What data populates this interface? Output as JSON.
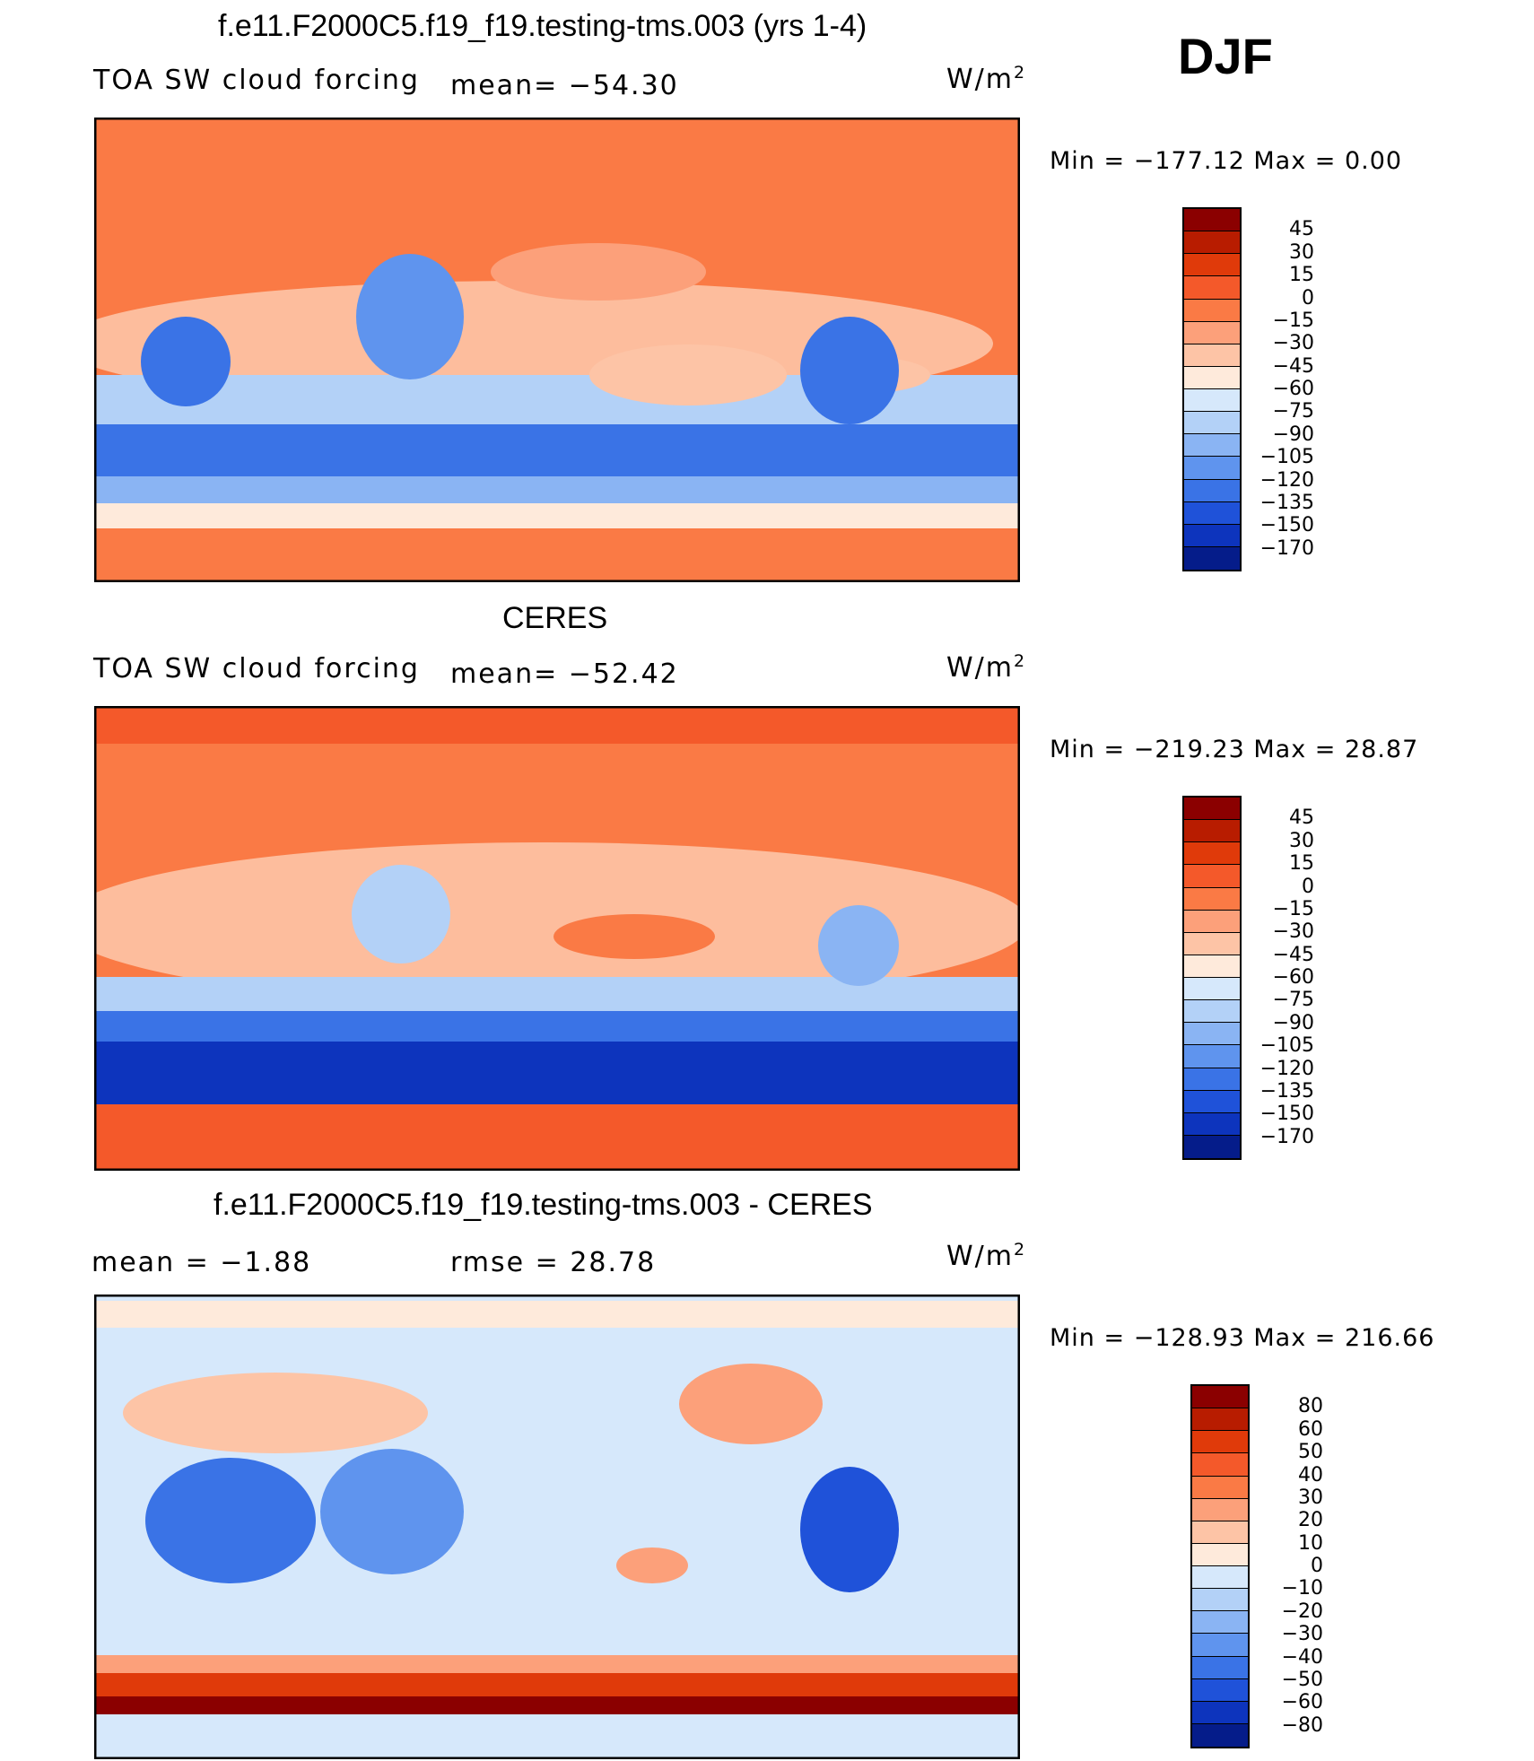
{
  "season": "DJF",
  "panels": [
    {
      "title": "f.e11.F2000C5.f19_f19.testing-tms.003 (yrs 1-4)",
      "left_label": "TOA SW cloud forcing",
      "center_label": "mean=  −54.30",
      "units_base": "W/m",
      "units_sup": "2",
      "minmax": "Min  =  −177.12  Max  =     0.00",
      "colorbar_labels": [
        "45",
        "30",
        "15",
        "0",
        "−15",
        "−30",
        "−45",
        "−60",
        "−75",
        "−90",
        "−105",
        "−120",
        "−135",
        "−150",
        "−170"
      ],
      "colors": [
        "#8b0000",
        "#b81c00",
        "#e03a0a",
        "#f4592a",
        "#fa7a45",
        "#fca07a",
        "#fdc4a6",
        "#feeadb",
        "#d6e8fb",
        "#b3d1f7",
        "#8ab4f3",
        "#5f94ee",
        "#3a73e6",
        "#1f52d9",
        "#0d34bd",
        "#051c8a"
      ]
    },
    {
      "title": "CERES",
      "left_label": "TOA SW cloud forcing",
      "center_label": "mean=  −52.42",
      "units_base": "W/m",
      "units_sup": "2",
      "minmax": "Min  =  −219.23  Max  =    28.87",
      "colorbar_labels": [
        "45",
        "30",
        "15",
        "0",
        "−15",
        "−30",
        "−45",
        "−60",
        "−75",
        "−90",
        "−105",
        "−120",
        "−135",
        "−150",
        "−170"
      ],
      "colors": [
        "#8b0000",
        "#b81c00",
        "#e03a0a",
        "#f4592a",
        "#fa7a45",
        "#fca07a",
        "#fdc4a6",
        "#feeadb",
        "#d6e8fb",
        "#b3d1f7",
        "#8ab4f3",
        "#5f94ee",
        "#3a73e6",
        "#1f52d9",
        "#0d34bd",
        "#051c8a"
      ]
    },
    {
      "title": "f.e11.F2000C5.f19_f19.testing-tms.003 - CERES",
      "left_label": "mean  =    −1.88",
      "center_label": "rmse  =    28.78",
      "units_base": "W/m",
      "units_sup": "2",
      "minmax": "Min  =  −128.93  Max  =  216.66",
      "colorbar_labels": [
        "80",
        "60",
        "50",
        "40",
        "30",
        "20",
        "10",
        "0",
        "−10",
        "−20",
        "−30",
        "−40",
        "−50",
        "−60",
        "−80"
      ],
      "colors": [
        "#8b0000",
        "#b81c00",
        "#e03a0a",
        "#f4592a",
        "#fa7a45",
        "#fca07a",
        "#fdc4a6",
        "#feeadb",
        "#d6e8fb",
        "#b3d1f7",
        "#8ab4f3",
        "#5f94ee",
        "#3a73e6",
        "#1f52d9",
        "#0d34bd",
        "#051c8a"
      ]
    }
  ],
  "chart_data": [
    {
      "type": "heatmap",
      "title": "f.e11.F2000C5.f19_f19.testing-tms.003 (yrs 1-4)",
      "variable": "TOA SW cloud forcing",
      "units": "W/m2",
      "mean": -54.3,
      "min": -177.12,
      "max": 0.0,
      "contour_levels": [
        45,
        30,
        15,
        0,
        -15,
        -30,
        -45,
        -60,
        -75,
        -90,
        -105,
        -120,
        -135,
        -150,
        -170
      ]
    },
    {
      "type": "heatmap",
      "title": "CERES",
      "variable": "TOA SW cloud forcing",
      "units": "W/m2",
      "mean": -52.42,
      "min": -219.23,
      "max": 28.87,
      "contour_levels": [
        45,
        30,
        15,
        0,
        -15,
        -30,
        -45,
        -60,
        -75,
        -90,
        -105,
        -120,
        -135,
        -150,
        -170
      ]
    },
    {
      "type": "heatmap",
      "title": "f.e11.F2000C5.f19_f19.testing-tms.003 - CERES",
      "units": "W/m2",
      "mean": -1.88,
      "rmse": 28.78,
      "min": -128.93,
      "max": 216.66,
      "contour_levels": [
        80,
        60,
        50,
        40,
        30,
        20,
        10,
        0,
        -10,
        -20,
        -30,
        -40,
        -50,
        -60,
        -80
      ]
    }
  ]
}
